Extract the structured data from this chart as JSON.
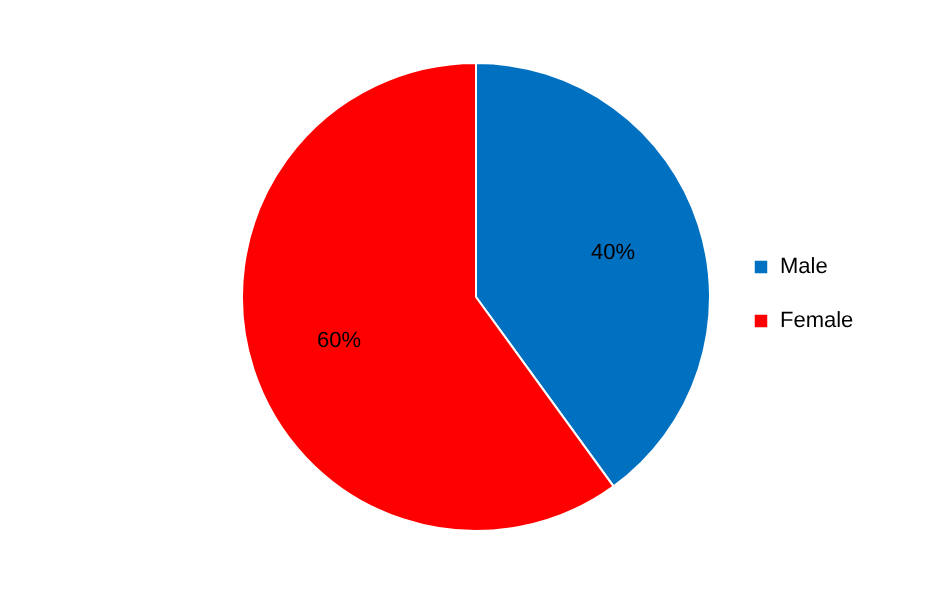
{
  "chart_data": {
    "type": "pie",
    "categories": [
      "Male",
      "Female"
    ],
    "values": [
      40,
      60
    ],
    "colors": [
      "#0070c0",
      "#ff0000"
    ],
    "value_labels": [
      "40%",
      "60%"
    ],
    "legend": "right"
  }
}
